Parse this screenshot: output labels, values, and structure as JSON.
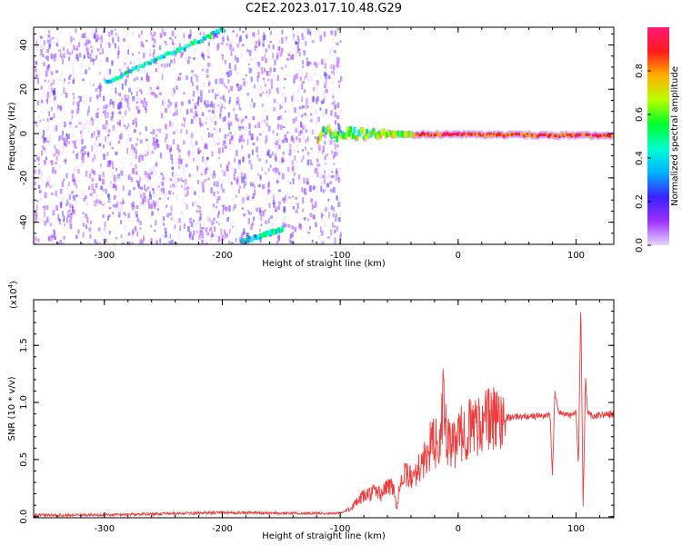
{
  "title": "C2E2.2023.017.10.48.G29",
  "colors": {
    "snr_line": "#f03c3c",
    "spectrogram_points": "#7e22f2",
    "colorbar_stops": [
      "#e8d6ff",
      "#9b30ff",
      "#3b22ff",
      "#00b3ff",
      "#00ffd0",
      "#00ff2a",
      "#b9ff00",
      "#ffb000",
      "#ff1a1a",
      "#ff1a7a"
    ]
  },
  "chart_data": [
    {
      "type": "heatmap",
      "xlabel": "Height of straight line (km)",
      "ylabel": "Frequency (Hz)",
      "xlim": [
        -360,
        132
      ],
      "ylim": [
        -50,
        48
      ],
      "xticks": [
        -300,
        -200,
        -100,
        0,
        100
      ],
      "yticks": [
        -40,
        -20,
        0,
        20,
        40
      ],
      "colorbar": {
        "label": "Normalized spectral amplitude",
        "range": [
          0.0,
          1.0
        ],
        "ticks": [
          "0.0",
          "0.2",
          "0.4",
          "0.6",
          "0.8"
        ]
      },
      "features": [
        {
          "kind": "main-trace",
          "from": [
            -120,
            0
          ],
          "to": [
            132,
            -1
          ],
          "amplitude": 0.9
        },
        {
          "kind": "upper-diagonal",
          "from": [
            -300,
            23
          ],
          "to": [
            -200,
            47
          ],
          "amplitude": 0.35
        },
        {
          "kind": "lower-diagonal",
          "from": [
            -185,
            -49
          ],
          "to": [
            -150,
            -43
          ],
          "amplitude": 0.35
        },
        {
          "kind": "noise-field",
          "x_range": [
            -360,
            -100
          ],
          "y_range": [
            -50,
            48
          ],
          "amplitude": 0.15
        }
      ]
    },
    {
      "type": "line",
      "xlabel": "Height of straight line (km)",
      "ylabel": "SNR (10 * v/v)",
      "y_multiplier": "(x10",
      "y_multiplier_exp": "4",
      "xlim": [
        -360,
        132
      ],
      "ylim": [
        -100,
        19000
      ],
      "xticks": [
        -300,
        -200,
        -100,
        0,
        100
      ],
      "yticks": [
        0,
        5000,
        10000,
        15000
      ],
      "ytick_labels": [
        "0.0",
        "0.5",
        "1.0",
        "1.5"
      ],
      "series": [
        {
          "x": [
            -360,
            -300,
            -250,
            -200,
            -150,
            -110,
            -100,
            -95,
            -90,
            -85,
            -80,
            -75,
            -70,
            -65,
            -60,
            -55,
            -52,
            -50,
            -45,
            -42,
            -40,
            -35,
            -30,
            -25,
            -20,
            -15,
            -12,
            -10,
            -5,
            0,
            10,
            20,
            30,
            40,
            50,
            60,
            70,
            78,
            80,
            82,
            85,
            90,
            95,
            100,
            102,
            104,
            106,
            108,
            110,
            115,
            120,
            132
          ],
          "y": [
            120,
            150,
            250,
            350,
            300,
            280,
            300,
            500,
            900,
            1300,
            1800,
            2000,
            2200,
            2000,
            2600,
            2800,
            500,
            3000,
            3500,
            3800,
            3200,
            4200,
            4600,
            6000,
            6500,
            6200,
            11000,
            6800,
            6000,
            7000,
            7800,
            8300,
            8600,
            8700,
            8750,
            8800,
            8800,
            8900,
            3600,
            11000,
            9200,
            9000,
            8800,
            9100,
            4400,
            18800,
            600,
            12000,
            9000,
            8800,
            8900,
            9000
          ]
        }
      ]
    }
  ]
}
